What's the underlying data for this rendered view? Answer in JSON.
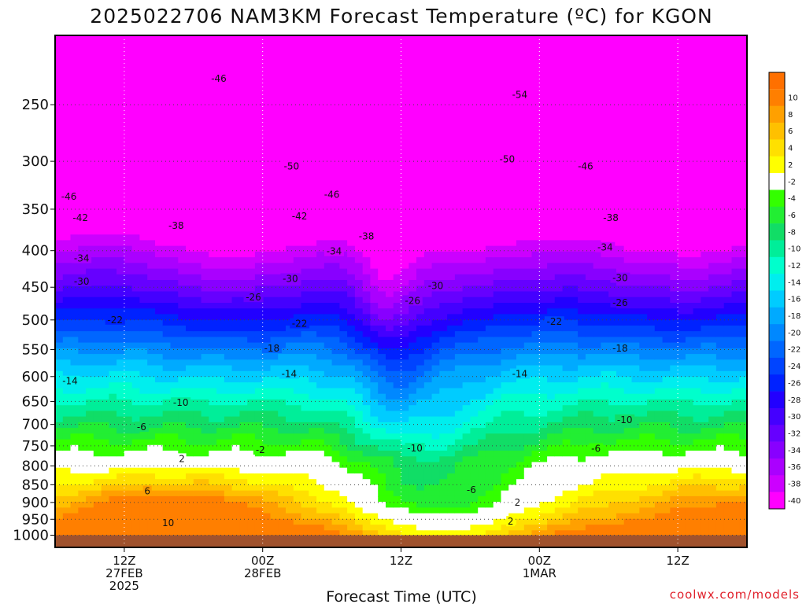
{
  "chart_data": {
    "type": "heatmap",
    "title": "2025022706 NAM3KM Forecast Temperature (ºC) for KGON",
    "xlabel": "Forecast Time (UTC)",
    "ylabel": "",
    "credit": "coolwx.com/models",
    "y_axis": {
      "scale": "log",
      "unit": "hPa",
      "range": [
        200,
        1040
      ],
      "ticks": [
        250,
        300,
        350,
        400,
        450,
        500,
        550,
        600,
        650,
        700,
        750,
        800,
        850,
        900,
        950,
        1000
      ]
    },
    "x_axis": {
      "range_hours": [
        0,
        60
      ],
      "ticks": [
        {
          "hour": 6,
          "lines": [
            "12Z",
            "27FEB",
            "2025"
          ]
        },
        {
          "hour": 18,
          "lines": [
            "00Z",
            "28FEB"
          ]
        },
        {
          "hour": 30,
          "lines": [
            "12Z"
          ]
        },
        {
          "hour": 42,
          "lines": [
            "00Z",
            "1MAR"
          ]
        },
        {
          "hour": 54,
          "lines": [
            "12Z"
          ]
        }
      ]
    },
    "grid": true,
    "colorbar": {
      "position": "right",
      "levels": [
        10,
        8,
        6,
        4,
        2,
        -2,
        -4,
        -6,
        -8,
        -10,
        -12,
        -14,
        -16,
        -18,
        -20,
        -22,
        -24,
        -26,
        -28,
        -30,
        -32,
        -34,
        -36,
        -38,
        -40
      ],
      "colors": [
        "#ff7f00",
        "#ffa000",
        "#ffc000",
        "#ffe000",
        "#ffff00",
        "#ffffff",
        "#33ff00",
        "#22ee33",
        "#11dd66",
        "#00ee99",
        "#00ffcc",
        "#00eeee",
        "#00ccff",
        "#00aaff",
        "#0088ff",
        "#0066ff",
        "#0044ff",
        "#0022ff",
        "#2200ff",
        "#4400ff",
        "#6600ff",
        "#8800ff",
        "#aa00ff",
        "#cc00ff",
        "#ff00ff"
      ]
    },
    "contour_labels": [
      {
        "hour": 14.2,
        "p": 230,
        "value": -46
      },
      {
        "hour": 20.5,
        "p": 305,
        "value": -50
      },
      {
        "hour": 40.3,
        "p": 242,
        "value": -54
      },
      {
        "hour": 39.2,
        "p": 298,
        "value": -50
      },
      {
        "hour": 46.0,
        "p": 305,
        "value": -46
      },
      {
        "hour": 1.2,
        "p": 336,
        "value": -46
      },
      {
        "hour": 24.0,
        "p": 334,
        "value": -46
      },
      {
        "hour": 2.2,
        "p": 360,
        "value": -42
      },
      {
        "hour": 21.2,
        "p": 358,
        "value": -42
      },
      {
        "hour": 10.5,
        "p": 369,
        "value": -38
      },
      {
        "hour": 27.0,
        "p": 382,
        "value": -38
      },
      {
        "hour": 48.2,
        "p": 360,
        "value": -38
      },
      {
        "hour": 2.3,
        "p": 410,
        "value": -34
      },
      {
        "hour": 24.2,
        "p": 401,
        "value": -34
      },
      {
        "hour": 47.7,
        "p": 396,
        "value": -34
      },
      {
        "hour": 2.3,
        "p": 442,
        "value": -30
      },
      {
        "hour": 20.4,
        "p": 438,
        "value": -30
      },
      {
        "hour": 33.0,
        "p": 448,
        "value": -30
      },
      {
        "hour": 49.0,
        "p": 437,
        "value": -30
      },
      {
        "hour": 17.2,
        "p": 465,
        "value": -26
      },
      {
        "hour": 31.0,
        "p": 470,
        "value": -26
      },
      {
        "hour": 49.0,
        "p": 473,
        "value": -26
      },
      {
        "hour": 5.2,
        "p": 500,
        "value": -22
      },
      {
        "hour": 21.2,
        "p": 506,
        "value": -22
      },
      {
        "hour": 43.3,
        "p": 503,
        "value": -22
      },
      {
        "hour": 18.8,
        "p": 548,
        "value": -18
      },
      {
        "hour": 49.0,
        "p": 548,
        "value": -18
      },
      {
        "hour": 1.3,
        "p": 609,
        "value": -14
      },
      {
        "hour": 20.3,
        "p": 595,
        "value": -14
      },
      {
        "hour": 40.3,
        "p": 595,
        "value": -14
      },
      {
        "hour": 10.9,
        "p": 653,
        "value": -10
      },
      {
        "hour": 31.2,
        "p": 756,
        "value": -10
      },
      {
        "hour": 49.4,
        "p": 690,
        "value": -10
      },
      {
        "hour": 7.5,
        "p": 706,
        "value": -6
      },
      {
        "hour": 36.1,
        "p": 864,
        "value": -6
      },
      {
        "hour": 46.9,
        "p": 757,
        "value": -6
      },
      {
        "hour": 17.8,
        "p": 760,
        "value": -2
      },
      {
        "hour": 11.0,
        "p": 782,
        "value": 2
      },
      {
        "hour": 40.1,
        "p": 900,
        "value": 2
      },
      {
        "hour": 39.5,
        "p": 957,
        "value": 2
      },
      {
        "hour": 8.0,
        "p": 868,
        "value": 6
      },
      {
        "hour": 9.8,
        "p": 962,
        "value": 10
      }
    ]
  }
}
